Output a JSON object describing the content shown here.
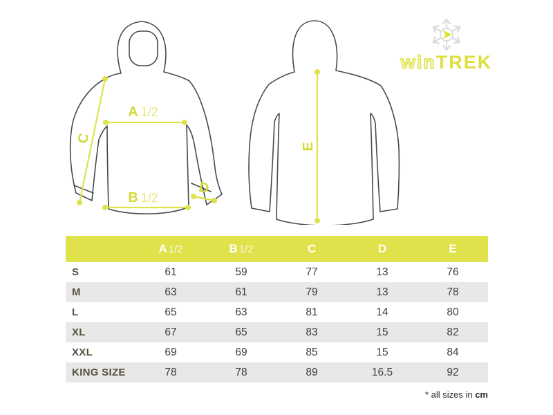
{
  "brand": {
    "name_prefix": "win",
    "name_suffix": "TREK",
    "icon": "snowflake-arrow-icon"
  },
  "diagram": {
    "labels": {
      "a_key": "A",
      "a_suffix": "1/2",
      "b_key": "B",
      "b_suffix": "1/2",
      "c": "C",
      "d": "D",
      "e": "E"
    }
  },
  "table": {
    "columns": [
      {
        "key": "A",
        "suffix": "1/2"
      },
      {
        "key": "B",
        "suffix": "1/2"
      },
      {
        "key": "C",
        "suffix": ""
      },
      {
        "key": "D",
        "suffix": ""
      },
      {
        "key": "E",
        "suffix": ""
      }
    ],
    "rows": [
      {
        "size": "S",
        "values": [
          "61",
          "59",
          "77",
          "13",
          "76"
        ]
      },
      {
        "size": "M",
        "values": [
          "63",
          "61",
          "79",
          "13",
          "78"
        ]
      },
      {
        "size": "L",
        "values": [
          "65",
          "63",
          "81",
          "14",
          "80"
        ]
      },
      {
        "size": "XL",
        "values": [
          "67",
          "65",
          "83",
          "15",
          "82"
        ]
      },
      {
        "size": "XXL",
        "values": [
          "69",
          "69",
          "85",
          "15",
          "84"
        ]
      },
      {
        "size": "KING SIZE",
        "values": [
          "78",
          "78",
          "89",
          "16.5",
          "92"
        ]
      }
    ]
  },
  "footnote": {
    "text": "* all sizes in ",
    "unit": "cm"
  },
  "colors": {
    "accent": "#dfe24a",
    "measure_line": "#dde24b",
    "jacket_outline": "#46494c",
    "size_label": "#554f3b",
    "value_text": "#3a3c3e",
    "row_alt": "#e8e8e8",
    "snowflake_gray": "#d9dadb",
    "header_text": "#ffffff"
  }
}
